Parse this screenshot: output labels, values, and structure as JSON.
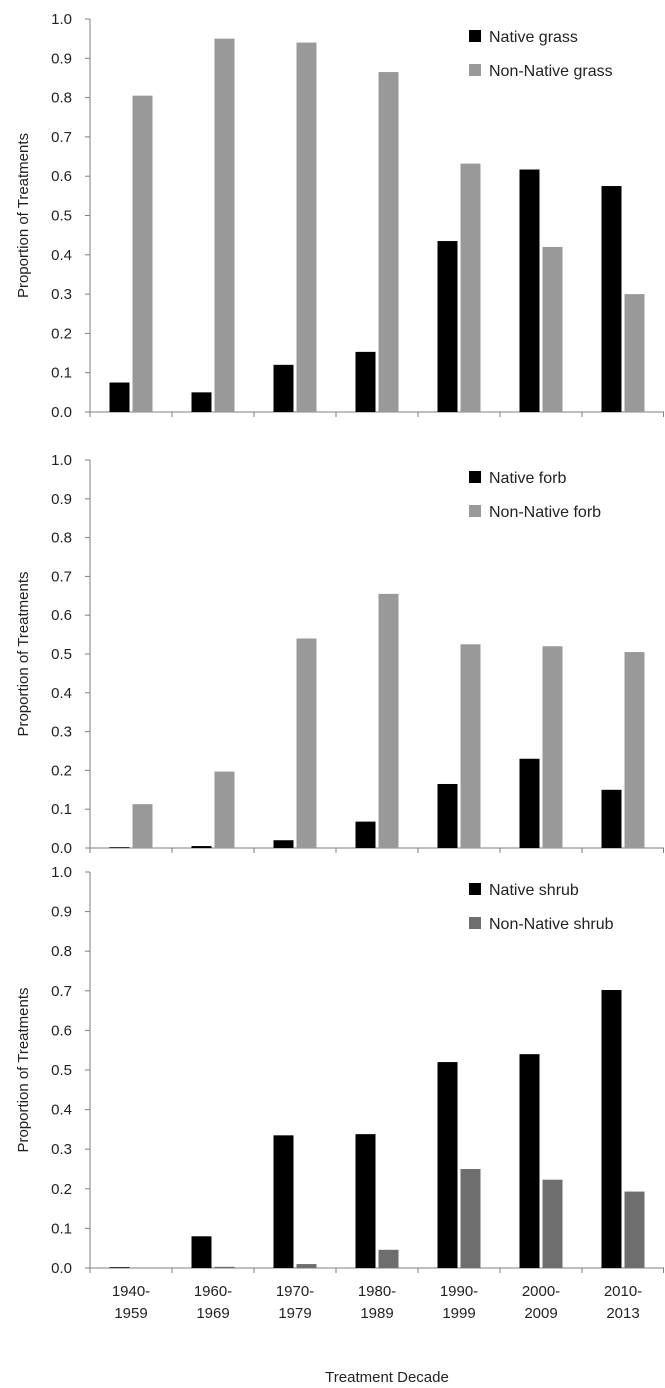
{
  "chart_data": [
    {
      "type": "bar",
      "ylabel": "Proportion of Treatments",
      "xlabel": "",
      "ylim": [
        0,
        1.0
      ],
      "yticks": [
        "0.0",
        "0.1",
        "0.2",
        "0.3",
        "0.4",
        "0.5",
        "0.6",
        "0.7",
        "0.8",
        "0.9",
        "1.0"
      ],
      "legend_position": "top-right",
      "show_category_labels": false,
      "categories": [
        [
          "1940-",
          "1959"
        ],
        [
          "1960-",
          "1969"
        ],
        [
          "1970-",
          "1979"
        ],
        [
          "1980-",
          "1989"
        ],
        [
          "1990-",
          "1999"
        ],
        [
          "2000-",
          "2009"
        ],
        [
          "2010-",
          "2013"
        ]
      ],
      "series": [
        {
          "name": "Native grass",
          "color": "#000000",
          "values": [
            0.075,
            0.05,
            0.12,
            0.153,
            0.435,
            0.617,
            0.575
          ]
        },
        {
          "name": "Non-Native grass",
          "color": "#999999",
          "values": [
            0.805,
            0.95,
            0.94,
            0.865,
            0.632,
            0.42,
            0.3
          ]
        }
      ]
    },
    {
      "type": "bar",
      "ylabel": "Proportion of Treatments",
      "xlabel": "",
      "ylim": [
        0,
        1.0
      ],
      "yticks": [
        "0.0",
        "0.1",
        "0.2",
        "0.3",
        "0.4",
        "0.5",
        "0.6",
        "0.7",
        "0.8",
        "0.9",
        "1.0"
      ],
      "legend_position": "top-right",
      "show_category_labels": false,
      "categories": [
        [
          "1940-",
          "1959"
        ],
        [
          "1960-",
          "1969"
        ],
        [
          "1970-",
          "1979"
        ],
        [
          "1980-",
          "1989"
        ],
        [
          "1990-",
          "1999"
        ],
        [
          "2000-",
          "2009"
        ],
        [
          "2010-",
          "2013"
        ]
      ],
      "series": [
        {
          "name": "Native forb",
          "color": "#000000",
          "values": [
            0.002,
            0.005,
            0.02,
            0.068,
            0.165,
            0.23,
            0.15
          ]
        },
        {
          "name": "Non-Native forb",
          "color": "#999999",
          "values": [
            0.113,
            0.197,
            0.54,
            0.655,
            0.525,
            0.52,
            0.505
          ]
        }
      ]
    },
    {
      "type": "bar",
      "ylabel": "Proportion of Treatments",
      "xlabel": "Treatment Decade",
      "ylim": [
        0,
        1.0
      ],
      "yticks": [
        "0.0",
        "0.1",
        "0.2",
        "0.3",
        "0.4",
        "0.5",
        "0.6",
        "0.7",
        "0.8",
        "0.9",
        "1.0"
      ],
      "legend_position": "top-right",
      "show_category_labels": true,
      "categories": [
        [
          "1940-",
          "1959"
        ],
        [
          "1960-",
          "1969"
        ],
        [
          "1970-",
          "1979"
        ],
        [
          "1980-",
          "1989"
        ],
        [
          "1990-",
          "1999"
        ],
        [
          "2000-",
          "2009"
        ],
        [
          "2010-",
          "2013"
        ]
      ],
      "series": [
        {
          "name": "Native shrub",
          "color": "#000000",
          "values": [
            0.002,
            0.08,
            0.335,
            0.338,
            0.52,
            0.54,
            0.702
          ]
        },
        {
          "name": "Non-Native shrub",
          "color": "#6e6e6e",
          "values": [
            0.0,
            0.003,
            0.01,
            0.046,
            0.25,
            0.223,
            0.193
          ]
        }
      ]
    }
  ]
}
